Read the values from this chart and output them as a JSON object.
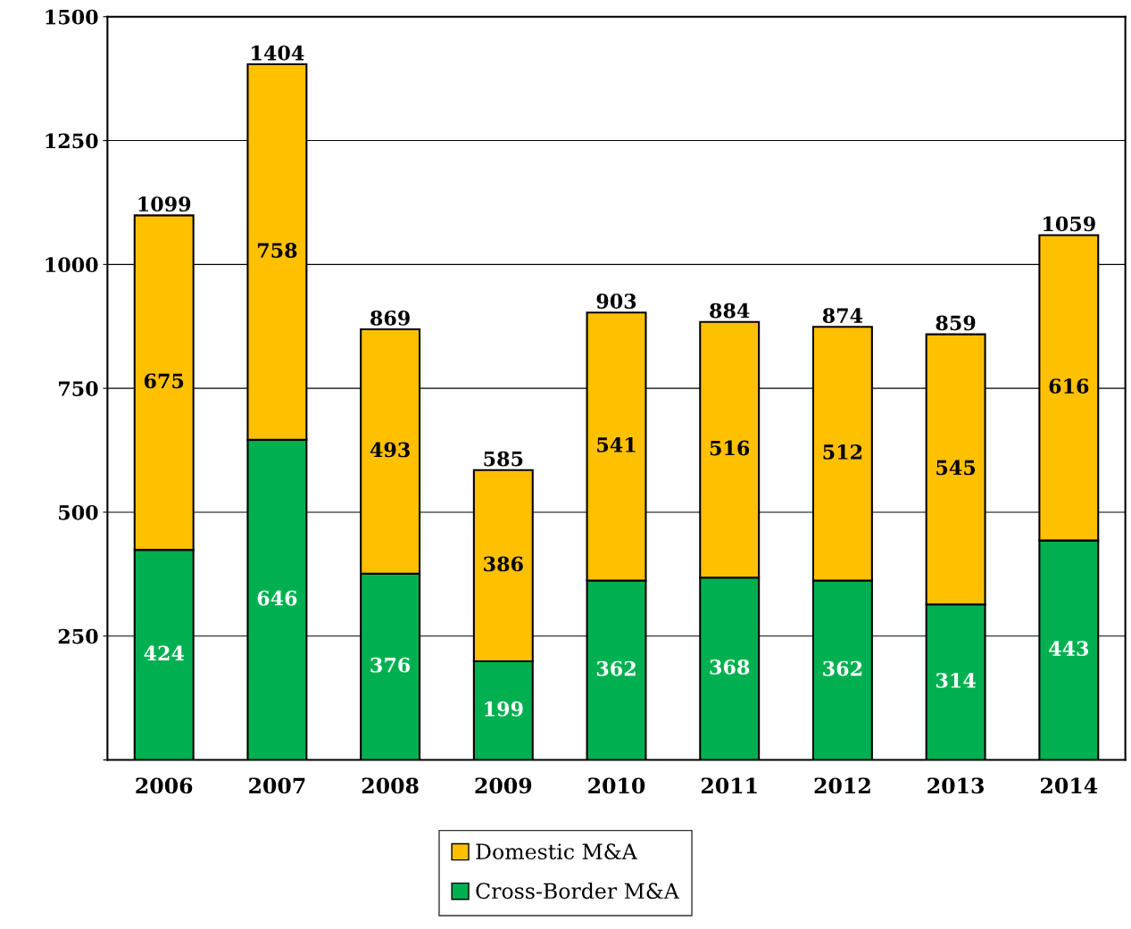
{
  "chart_data": {
    "type": "bar",
    "stacked": true,
    "categories": [
      "2006",
      "2007",
      "2008",
      "2009",
      "2010",
      "2011",
      "2012",
      "2013",
      "2014"
    ],
    "series": [
      {
        "name": "Cross-Border M&A",
        "color": "#00b050",
        "values": [
          424,
          646,
          376,
          199,
          362,
          368,
          362,
          314,
          443
        ]
      },
      {
        "name": "Domestic M&A",
        "color": "#ffc000",
        "values": [
          675,
          758,
          493,
          386,
          541,
          516,
          512,
          545,
          616
        ]
      }
    ],
    "totals": [
      "1099",
      "1404",
      "869",
      "585",
      "903",
      "884",
      "874",
      "859",
      "1059"
    ],
    "data_labels": true,
    "ylim": [
      0,
      1500
    ],
    "yticks": [
      {
        "value": 0,
        "label": null
      },
      250,
      500,
      750,
      1000,
      1250,
      1500
    ],
    "grid": "y",
    "legend": "bottom"
  }
}
